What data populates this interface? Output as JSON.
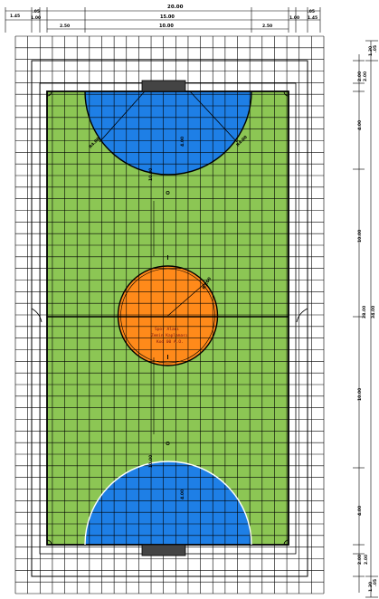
{
  "colors": {
    "background": "#ffffff",
    "grid_line": "#000000",
    "court_green": "#8cc654",
    "penalty_area_blue": "#1e7fe6",
    "center_circle_orange": "#ff8a1a",
    "goal_fill": "#444444",
    "center_text": "#7a1010"
  },
  "top_dimensions": {
    "overall": "20.00",
    "left_outer": "1.45",
    "left_small": ".05",
    "left_inner": "1.00",
    "middle_left": "2.50",
    "middle": "15.00",
    "middle_inner": "10.00",
    "middle_right": "2.50",
    "right_inner": "1.00",
    "right_small": ".05",
    "right_outer": "1.45"
  },
  "right_dimensions": {
    "top_outer": "1.30",
    "top_small": ".05",
    "top_goal": "2.00",
    "top_area": "4.00",
    "top_half": "10.00",
    "center": "28.00",
    "overall": "34.00",
    "bottom_half": "10.00",
    "bottom_area": "4.00",
    "bottom_goal": "2.00",
    "bottom_small": ".05",
    "bottom_outer": "1.30"
  },
  "court_labels": {
    "top_radius_left": "R4.00",
    "top_radius_right": "R4.00",
    "top_area_depth": "4.00",
    "center_radius": "R3.00",
    "penalty_mark_top": "10.00",
    "penalty_mark_bottom": "10.00",
    "bottom_area_depth": "4.00",
    "center_text_line1": "Spor Alanı",
    "center_text_line2": "Zemin Kaplaması",
    "center_text_line3": "Kod 00 A.O."
  }
}
